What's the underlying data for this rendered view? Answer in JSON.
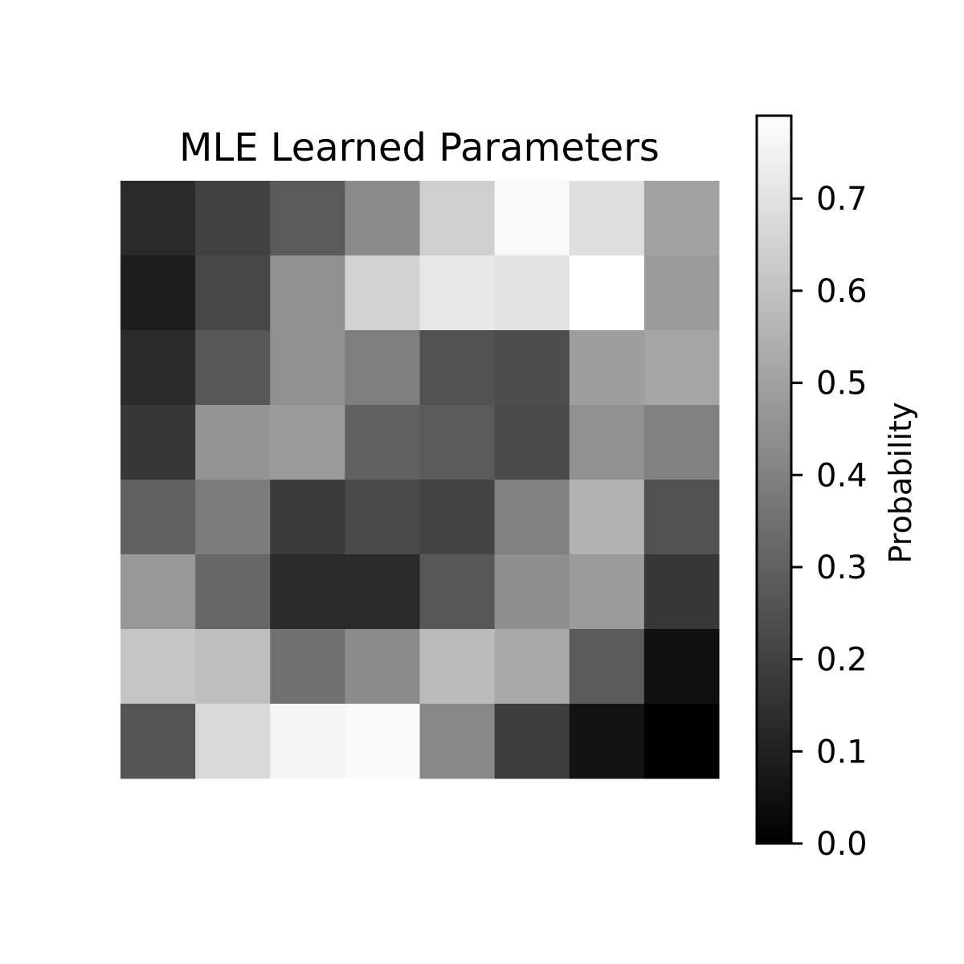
{
  "chart_data": {
    "type": "heatmap",
    "title": "MLE Learned Parameters",
    "colormap": "gray",
    "grid": false,
    "rows": 8,
    "cols": 8,
    "values": [
      [
        0.13,
        0.2,
        0.28,
        0.43,
        0.64,
        0.77,
        0.69,
        0.5
      ],
      [
        0.09,
        0.22,
        0.45,
        0.65,
        0.72,
        0.7,
        0.79,
        0.48
      ],
      [
        0.13,
        0.27,
        0.45,
        0.39,
        0.25,
        0.24,
        0.49,
        0.51
      ],
      [
        0.17,
        0.46,
        0.48,
        0.3,
        0.28,
        0.23,
        0.45,
        0.4
      ],
      [
        0.3,
        0.38,
        0.18,
        0.23,
        0.21,
        0.4,
        0.55,
        0.25
      ],
      [
        0.47,
        0.32,
        0.13,
        0.13,
        0.27,
        0.44,
        0.48,
        0.17
      ],
      [
        0.61,
        0.59,
        0.35,
        0.43,
        0.58,
        0.52,
        0.28,
        0.05
      ],
      [
        0.26,
        0.67,
        0.76,
        0.77,
        0.42,
        0.19,
        0.06,
        0.0
      ]
    ],
    "colorbar": {
      "label": "Probability",
      "vmin": 0.0,
      "vmax": 0.79,
      "ticks": [
        0.0,
        0.1,
        0.2,
        0.3,
        0.4,
        0.5,
        0.6,
        0.7
      ],
      "tick_labels": [
        "0.0",
        "0.1",
        "0.2",
        "0.3",
        "0.4",
        "0.5",
        "0.6",
        "0.7"
      ]
    }
  }
}
